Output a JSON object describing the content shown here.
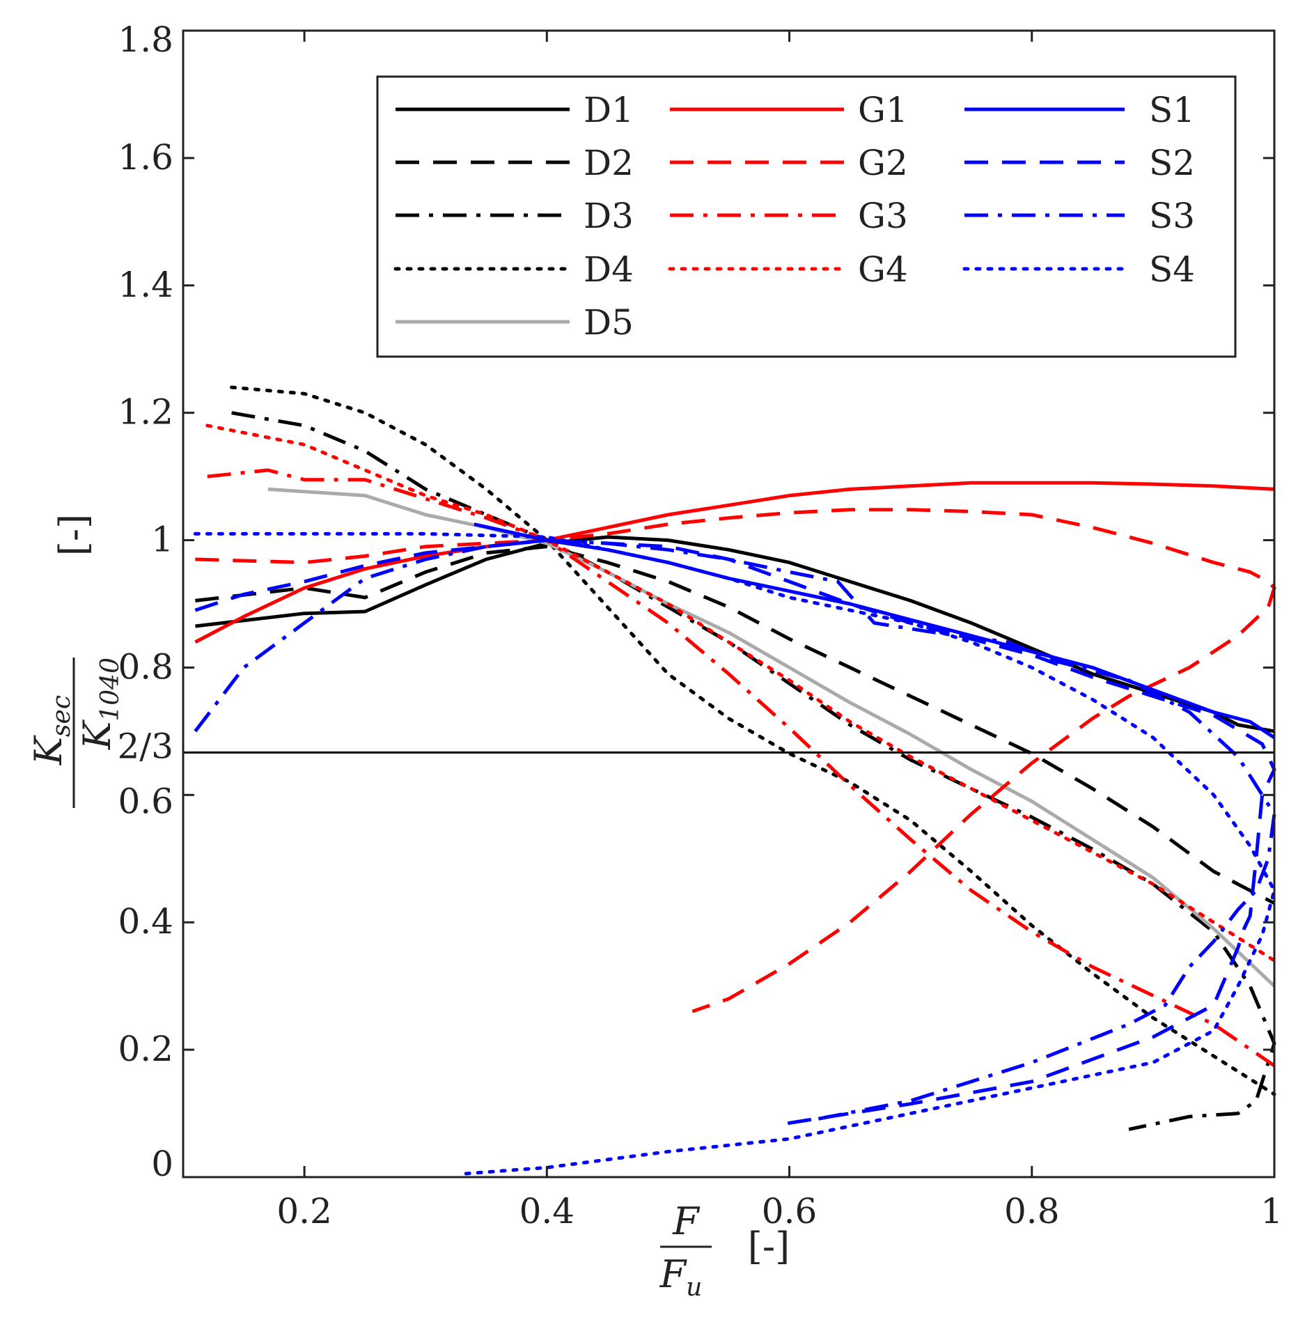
{
  "chart_data": {
    "type": "line",
    "xlabel": {
      "numerator": "F",
      "denominator_main": "F",
      "denominator_sub": "u",
      "unit": "[-]"
    },
    "ylabel": {
      "numerator_main": "K",
      "numerator_sub": "sec",
      "denominator_main": "K",
      "denominator_sub": "1040",
      "unit": "[-]"
    },
    "xlim": [
      0.1,
      1.0
    ],
    "ylim": [
      0.0,
      1.8
    ],
    "x_ticks": [
      0.2,
      0.4,
      0.6,
      0.8,
      1.0
    ],
    "x_tick_labels": [
      "0.2",
      "0.4",
      "0.6",
      "0.8",
      "1"
    ],
    "y_ticks": [
      0.0,
      0.2,
      0.4,
      0.6,
      0.8,
      1.0,
      1.2,
      1.4,
      1.6,
      1.8
    ],
    "y_tick_labels": [
      "0",
      "0.2",
      "0.4",
      "0.6",
      "0.8",
      "1",
      "1.2",
      "1.4",
      "1.6",
      "1.8"
    ],
    "reference_line": {
      "y": 0.6667,
      "label": "2/3",
      "color": "#000000"
    },
    "legend_position": "top-right",
    "series": [
      {
        "name": "D1",
        "color": "#000000",
        "style": "solid",
        "points": [
          [
            0.11,
            0.865
          ],
          [
            0.2,
            0.885
          ],
          [
            0.25,
            0.888
          ],
          [
            0.3,
            0.93
          ],
          [
            0.35,
            0.97
          ],
          [
            0.4,
            0.995
          ],
          [
            0.45,
            1.005
          ],
          [
            0.5,
            1.0
          ],
          [
            0.55,
            0.985
          ],
          [
            0.6,
            0.965
          ],
          [
            0.65,
            0.935
          ],
          [
            0.7,
            0.905
          ],
          [
            0.75,
            0.87
          ],
          [
            0.8,
            0.83
          ],
          [
            0.85,
            0.79
          ],
          [
            0.9,
            0.76
          ],
          [
            0.95,
            0.73
          ],
          [
            0.97,
            0.71
          ],
          [
            1.0,
            0.7
          ]
        ]
      },
      {
        "name": "D2",
        "color": "#000000",
        "style": "dashed",
        "points": [
          [
            0.11,
            0.905
          ],
          [
            0.2,
            0.925
          ],
          [
            0.25,
            0.91
          ],
          [
            0.3,
            0.95
          ],
          [
            0.35,
            0.98
          ],
          [
            0.4,
            0.99
          ],
          [
            0.45,
            0.965
          ],
          [
            0.5,
            0.935
          ],
          [
            0.55,
            0.895
          ],
          [
            0.6,
            0.845
          ],
          [
            0.65,
            0.8
          ],
          [
            0.7,
            0.755
          ],
          [
            0.75,
            0.71
          ],
          [
            0.8,
            0.665
          ],
          [
            0.85,
            0.61
          ],
          [
            0.9,
            0.55
          ],
          [
            0.95,
            0.48
          ],
          [
            1.0,
            0.43
          ]
        ]
      },
      {
        "name": "D3",
        "color": "#000000",
        "style": "dashdot",
        "points": [
          [
            0.14,
            1.2
          ],
          [
            0.2,
            1.18
          ],
          [
            0.25,
            1.14
          ],
          [
            0.3,
            1.08
          ],
          [
            0.35,
            1.04
          ],
          [
            0.4,
            1.0
          ],
          [
            0.45,
            0.95
          ],
          [
            0.5,
            0.895
          ],
          [
            0.55,
            0.84
          ],
          [
            0.6,
            0.775
          ],
          [
            0.65,
            0.71
          ],
          [
            0.7,
            0.655
          ],
          [
            0.75,
            0.61
          ],
          [
            0.8,
            0.565
          ],
          [
            0.85,
            0.515
          ],
          [
            0.9,
            0.46
          ],
          [
            0.95,
            0.385
          ],
          [
            0.98,
            0.3
          ],
          [
            1.0,
            0.21
          ],
          [
            0.985,
            0.12
          ],
          [
            0.97,
            0.1
          ],
          [
            0.93,
            0.095
          ],
          [
            0.88,
            0.075
          ]
        ]
      },
      {
        "name": "D4",
        "color": "#000000",
        "style": "dotted",
        "points": [
          [
            0.14,
            1.24
          ],
          [
            0.2,
            1.23
          ],
          [
            0.25,
            1.2
          ],
          [
            0.3,
            1.15
          ],
          [
            0.35,
            1.08
          ],
          [
            0.4,
            1.0
          ],
          [
            0.45,
            0.895
          ],
          [
            0.5,
            0.79
          ],
          [
            0.55,
            0.72
          ],
          [
            0.6,
            0.665
          ],
          [
            0.65,
            0.62
          ],
          [
            0.7,
            0.56
          ],
          [
            0.75,
            0.48
          ],
          [
            0.8,
            0.395
          ],
          [
            0.85,
            0.32
          ],
          [
            0.9,
            0.25
          ],
          [
            0.95,
            0.19
          ],
          [
            1.0,
            0.13
          ]
        ]
      },
      {
        "name": "D5",
        "color": "#aaaaaa",
        "style": "solid",
        "points": [
          [
            0.17,
            1.08
          ],
          [
            0.25,
            1.07
          ],
          [
            0.3,
            1.04
          ],
          [
            0.35,
            1.02
          ],
          [
            0.4,
            0.995
          ],
          [
            0.45,
            0.95
          ],
          [
            0.5,
            0.9
          ],
          [
            0.55,
            0.855
          ],
          [
            0.6,
            0.8
          ],
          [
            0.65,
            0.745
          ],
          [
            0.7,
            0.695
          ],
          [
            0.75,
            0.64
          ],
          [
            0.8,
            0.59
          ],
          [
            0.85,
            0.53
          ],
          [
            0.9,
            0.47
          ],
          [
            0.95,
            0.39
          ],
          [
            1.0,
            0.3
          ]
        ]
      },
      {
        "name": "G1",
        "color": "#ff0000",
        "style": "solid",
        "points": [
          [
            0.11,
            0.84
          ],
          [
            0.15,
            0.88
          ],
          [
            0.2,
            0.925
          ],
          [
            0.25,
            0.955
          ],
          [
            0.3,
            0.975
          ],
          [
            0.35,
            0.99
          ],
          [
            0.4,
            1.0
          ],
          [
            0.45,
            1.02
          ],
          [
            0.5,
            1.04
          ],
          [
            0.55,
            1.055
          ],
          [
            0.6,
            1.07
          ],
          [
            0.65,
            1.08
          ],
          [
            0.7,
            1.085
          ],
          [
            0.75,
            1.09
          ],
          [
            0.8,
            1.09
          ],
          [
            0.85,
            1.09
          ],
          [
            0.9,
            1.088
          ],
          [
            0.95,
            1.085
          ],
          [
            1.0,
            1.08
          ]
        ]
      },
      {
        "name": "G2",
        "color": "#ff0000",
        "style": "dashed",
        "points": [
          [
            0.11,
            0.97
          ],
          [
            0.2,
            0.965
          ],
          [
            0.25,
            0.975
          ],
          [
            0.3,
            0.99
          ],
          [
            0.35,
            0.995
          ],
          [
            0.4,
            1.0
          ],
          [
            0.45,
            1.01
          ],
          [
            0.5,
            1.025
          ],
          [
            0.55,
            1.035
          ],
          [
            0.6,
            1.043
          ],
          [
            0.65,
            1.048
          ],
          [
            0.7,
            1.048
          ],
          [
            0.75,
            1.045
          ],
          [
            0.8,
            1.04
          ],
          [
            0.85,
            1.02
          ],
          [
            0.9,
            0.995
          ],
          [
            0.95,
            0.965
          ],
          [
            0.98,
            0.95
          ],
          [
            0.995,
            0.935
          ],
          [
            1.0,
            0.925
          ],
          [
            0.995,
            0.895
          ],
          [
            0.97,
            0.85
          ],
          [
            0.93,
            0.8
          ],
          [
            0.88,
            0.755
          ],
          [
            0.85,
            0.72
          ],
          [
            0.8,
            0.65
          ],
          [
            0.75,
            0.57
          ],
          [
            0.7,
            0.48
          ],
          [
            0.65,
            0.4
          ],
          [
            0.6,
            0.335
          ],
          [
            0.55,
            0.28
          ],
          [
            0.52,
            0.26
          ]
        ]
      },
      {
        "name": "G3",
        "color": "#ff0000",
        "style": "dashdot",
        "points": [
          [
            0.12,
            1.1
          ],
          [
            0.17,
            1.11
          ],
          [
            0.2,
            1.095
          ],
          [
            0.25,
            1.095
          ],
          [
            0.3,
            1.065
          ],
          [
            0.35,
            1.035
          ],
          [
            0.4,
            1.0
          ],
          [
            0.45,
            0.935
          ],
          [
            0.5,
            0.87
          ],
          [
            0.55,
            0.79
          ],
          [
            0.6,
            0.705
          ],
          [
            0.65,
            0.615
          ],
          [
            0.7,
            0.53
          ],
          [
            0.75,
            0.45
          ],
          [
            0.8,
            0.385
          ],
          [
            0.85,
            0.33
          ],
          [
            0.9,
            0.285
          ],
          [
            0.95,
            0.24
          ],
          [
            1.0,
            0.175
          ]
        ]
      },
      {
        "name": "G4",
        "color": "#ff0000",
        "style": "dotted",
        "points": [
          [
            0.12,
            1.18
          ],
          [
            0.2,
            1.15
          ],
          [
            0.25,
            1.11
          ],
          [
            0.3,
            1.07
          ],
          [
            0.35,
            1.04
          ],
          [
            0.4,
            1.0
          ],
          [
            0.45,
            0.95
          ],
          [
            0.5,
            0.9
          ],
          [
            0.55,
            0.84
          ],
          [
            0.6,
            0.78
          ],
          [
            0.65,
            0.715
          ],
          [
            0.7,
            0.66
          ],
          [
            0.75,
            0.61
          ],
          [
            0.8,
            0.56
          ],
          [
            0.85,
            0.51
          ],
          [
            0.9,
            0.46
          ],
          [
            0.95,
            0.4
          ],
          [
            1.0,
            0.34
          ]
        ]
      },
      {
        "name": "S1",
        "color": "#0000ff",
        "style": "solid",
        "points": [
          [
            0.34,
            1.025
          ],
          [
            0.4,
            1.0
          ],
          [
            0.45,
            0.985
          ],
          [
            0.5,
            0.965
          ],
          [
            0.55,
            0.94
          ],
          [
            0.6,
            0.92
          ],
          [
            0.65,
            0.9
          ],
          [
            0.7,
            0.875
          ],
          [
            0.75,
            0.85
          ],
          [
            0.8,
            0.825
          ],
          [
            0.85,
            0.8
          ],
          [
            0.9,
            0.765
          ],
          [
            0.95,
            0.73
          ],
          [
            0.98,
            0.715
          ],
          [
            1.0,
            0.69
          ]
        ]
      },
      {
        "name": "S2",
        "color": "#0000ff",
        "style": "dashed",
        "points": [
          [
            0.11,
            0.89
          ],
          [
            0.15,
            0.915
          ],
          [
            0.2,
            0.935
          ],
          [
            0.25,
            0.96
          ],
          [
            0.3,
            0.98
          ],
          [
            0.35,
            0.99
          ],
          [
            0.4,
            1.0
          ],
          [
            0.45,
            0.995
          ],
          [
            0.5,
            0.99
          ],
          [
            0.55,
            0.97
          ],
          [
            0.6,
            0.935
          ],
          [
            0.65,
            0.9
          ],
          [
            0.7,
            0.87
          ],
          [
            0.75,
            0.845
          ],
          [
            0.8,
            0.82
          ],
          [
            0.85,
            0.785
          ],
          [
            0.9,
            0.755
          ],
          [
            0.95,
            0.725
          ],
          [
            0.99,
            0.68
          ],
          [
            1.0,
            0.64
          ],
          [
            0.99,
            0.6
          ],
          [
            0.985,
            0.5
          ],
          [
            0.98,
            0.41
          ],
          [
            0.975,
            0.39
          ],
          [
            0.97,
            0.36
          ],
          [
            0.95,
            0.27
          ],
          [
            0.9,
            0.22
          ],
          [
            0.8,
            0.15
          ],
          [
            0.7,
            0.115
          ],
          [
            0.6,
            0.085
          ],
          [
            0.59,
            0.08
          ]
        ]
      },
      {
        "name": "S3",
        "color": "#0000ff",
        "style": "dashdot",
        "points": [
          [
            0.11,
            0.7
          ],
          [
            0.15,
            0.8
          ],
          [
            0.2,
            0.87
          ],
          [
            0.25,
            0.94
          ],
          [
            0.3,
            0.97
          ],
          [
            0.35,
            0.99
          ],
          [
            0.4,
            1.0
          ],
          [
            0.45,
            0.995
          ],
          [
            0.5,
            0.985
          ],
          [
            0.55,
            0.97
          ],
          [
            0.6,
            0.95
          ],
          [
            0.64,
            0.935
          ],
          [
            0.67,
            0.87
          ],
          [
            0.72,
            0.855
          ],
          [
            0.78,
            0.84
          ],
          [
            0.82,
            0.81
          ],
          [
            0.88,
            0.78
          ],
          [
            0.93,
            0.73
          ],
          [
            0.97,
            0.66
          ],
          [
            0.99,
            0.6
          ],
          [
            1.0,
            0.57
          ],
          [
            0.995,
            0.5
          ],
          [
            0.985,
            0.45
          ],
          [
            0.97,
            0.42
          ],
          [
            0.95,
            0.37
          ],
          [
            0.93,
            0.33
          ],
          [
            0.91,
            0.27
          ],
          [
            0.88,
            0.24
          ],
          [
            0.8,
            0.18
          ],
          [
            0.7,
            0.12
          ],
          [
            0.62,
            0.09
          ]
        ]
      },
      {
        "name": "S4",
        "color": "#0000ff",
        "style": "dotted",
        "points": [
          [
            0.11,
            1.01
          ],
          [
            0.2,
            1.01
          ],
          [
            0.3,
            1.01
          ],
          [
            0.4,
            1.005
          ],
          [
            0.45,
            0.985
          ],
          [
            0.5,
            0.965
          ],
          [
            0.55,
            0.94
          ],
          [
            0.6,
            0.91
          ],
          [
            0.65,
            0.89
          ],
          [
            0.7,
            0.87
          ],
          [
            0.75,
            0.84
          ],
          [
            0.8,
            0.8
          ],
          [
            0.85,
            0.75
          ],
          [
            0.9,
            0.69
          ],
          [
            0.95,
            0.6
          ],
          [
            0.98,
            0.52
          ],
          [
            1.0,
            0.45
          ],
          [
            0.99,
            0.38
          ],
          [
            0.97,
            0.3
          ],
          [
            0.95,
            0.23
          ],
          [
            0.9,
            0.18
          ],
          [
            0.8,
            0.14
          ],
          [
            0.7,
            0.1
          ],
          [
            0.6,
            0.06
          ],
          [
            0.5,
            0.04
          ],
          [
            0.4,
            0.015
          ],
          [
            0.33,
            0.005
          ]
        ]
      }
    ]
  },
  "colors": {
    "axis": "#222222",
    "background": "#ffffff",
    "legend_border": "#222222"
  }
}
